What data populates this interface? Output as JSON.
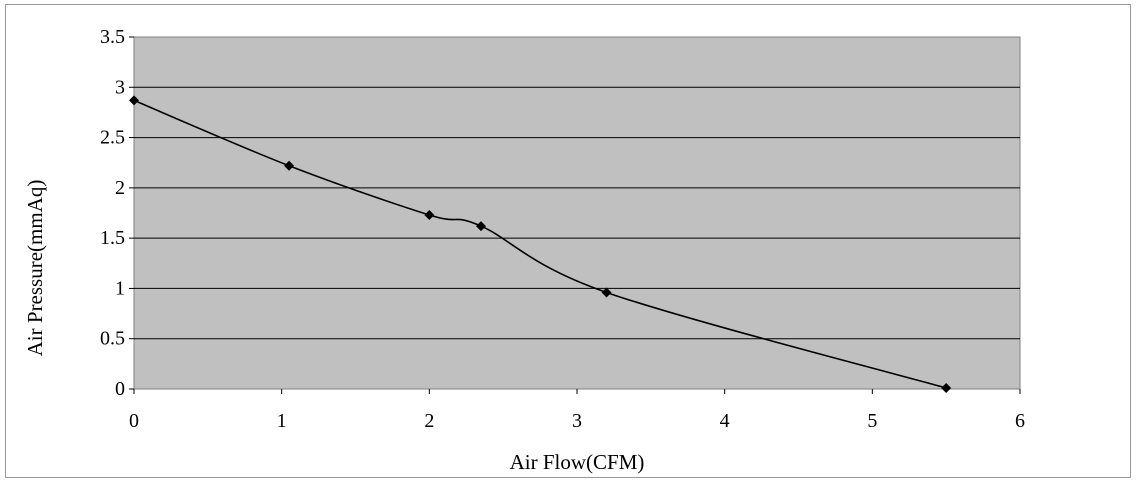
{
  "chart_data": {
    "type": "line",
    "title": "",
    "xlabel": "Air Flow(CFM)",
    "ylabel": "Air Pressure(mmAq)",
    "xlim": [
      0,
      6
    ],
    "ylim": [
      0,
      3.5
    ],
    "x_ticks": [
      "0",
      "1",
      "2",
      "3",
      "4",
      "5",
      "6"
    ],
    "y_ticks": [
      "0",
      "0.5",
      "1",
      "1.5",
      "2",
      "2.5",
      "3",
      "3.5"
    ],
    "grid": "horizontal",
    "legend": "none",
    "series": [
      {
        "x": [
          0,
          1.05,
          2.0,
          2.35,
          3.2,
          5.5
        ],
        "y": [
          2.87,
          2.22,
          1.73,
          1.62,
          0.96,
          0.01
        ]
      }
    ],
    "colors": {
      "plot_background": "#c0c0c0",
      "gridline": "#000000",
      "line": "#000000",
      "marker": "#000000"
    }
  }
}
